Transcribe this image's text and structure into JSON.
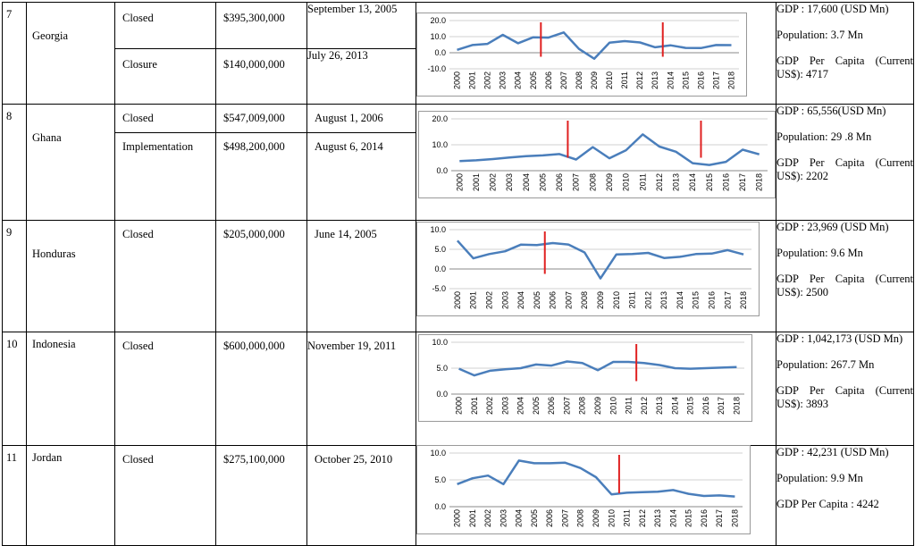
{
  "rows": [
    {
      "num": "7",
      "country": "Georgia",
      "programs": [
        {
          "status": "Closed",
          "amount": "$395,300,000",
          "date": "September 13, 2005"
        },
        {
          "status": "Closure",
          "amount": "$140,000,000",
          "date": "July 26, 2013"
        }
      ],
      "stats": [
        "GDP : 17,600 (USD Mn)",
        "Population: 3.7 Mn",
        "GDP Per Capita (Current US$): 4717"
      ]
    },
    {
      "num": "8",
      "country": "Ghana",
      "programs": [
        {
          "status": "Closed",
          "amount": "$547,009,000",
          "date": "August 1, 2006"
        },
        {
          "status": "Implementation",
          "amount": "$498,200,000",
          "date": "August 6, 2014"
        }
      ],
      "stats": [
        "GDP : 65,556(USD Mn)",
        "Population: 29 .8 Mn",
        "GDP Per Capita (Current US$): 2202"
      ]
    },
    {
      "num": "9",
      "country": "Honduras",
      "programs": [
        {
          "status": "Closed",
          "amount": "$205,000,000",
          "date": "June 14, 2005"
        }
      ],
      "stats": [
        "GDP : 23,969 (USD Mn)",
        "Population: 9.6 Mn",
        "GDP Per Capita (Current US$): 2500"
      ]
    },
    {
      "num": "10",
      "country": "Indonesia",
      "programs": [
        {
          "status": "Closed",
          "amount": "$600,000,000",
          "date": "November 19, 2011"
        }
      ],
      "stats": [
        "GDP : 1,042,173 (USD Mn)",
        "Population: 267.7 Mn",
        "GDP Per Capita (Current US$): 3893"
      ]
    },
    {
      "num": "11",
      "country": "Jordan",
      "programs": [
        {
          "status": "Closed",
          "amount": "$275,100,000",
          "date": "October 25, 2010"
        }
      ],
      "stats": [
        "GDP : 42,231 (USD Mn)",
        "Population: 9.9 Mn",
        "GDP Per Capita : 4242"
      ]
    }
  ],
  "colors": {
    "line": "#4a7ebb",
    "marker": "#e02020",
    "grid": "#d0d0d0"
  },
  "chart_data": [
    {
      "type": "line",
      "country": "Georgia",
      "x": [
        "2000",
        "2001",
        "2002",
        "2003",
        "2004",
        "2005",
        "2006",
        "2007",
        "2008",
        "2009",
        "2010",
        "2011",
        "2012",
        "2013",
        "2014",
        "2015",
        "2016",
        "2017",
        "2018"
      ],
      "values": [
        1.8,
        4.8,
        5.5,
        11.1,
        5.9,
        9.6,
        9.4,
        12.6,
        2.4,
        -3.7,
        6.2,
        7.2,
        6.4,
        3.4,
        4.6,
        3.0,
        2.9,
        4.8,
        4.7
      ],
      "yticks": [
        "20.0",
        "10.0",
        "0.0",
        "-10.0"
      ],
      "ylim": [
        -10,
        20
      ],
      "markers": [
        2005.5,
        2013.5
      ]
    },
    {
      "type": "line",
      "country": "Ghana",
      "x": [
        "2000",
        "2001",
        "2002",
        "2003",
        "2004",
        "2005",
        "2006",
        "2007",
        "2008",
        "2009",
        "2010",
        "2011",
        "2012",
        "2013",
        "2014",
        "2015",
        "2016",
        "2017",
        "2018"
      ],
      "values": [
        3.7,
        4.0,
        4.5,
        5.1,
        5.6,
        5.9,
        6.4,
        4.3,
        9.1,
        4.8,
        7.9,
        14.0,
        9.3,
        7.3,
        2.9,
        2.2,
        3.4,
        8.1,
        6.3
      ],
      "yticks": [
        "20.0",
        "10.0",
        "0.0"
      ],
      "ylim": [
        0,
        20
      ],
      "markers": [
        2006.5,
        2014.5
      ]
    },
    {
      "type": "line",
      "country": "Honduras",
      "x": [
        "2000",
        "2001",
        "2002",
        "2003",
        "2004",
        "2005",
        "2006",
        "2007",
        "2008",
        "2009",
        "2010",
        "2011",
        "2012",
        "2013",
        "2014",
        "2015",
        "2016",
        "2017",
        "2018"
      ],
      "values": [
        7.2,
        2.7,
        3.8,
        4.5,
        6.2,
        6.1,
        6.6,
        6.2,
        4.2,
        -2.4,
        3.7,
        3.8,
        4.1,
        2.8,
        3.1,
        3.8,
        3.9,
        4.8,
        3.7
      ],
      "yticks": [
        "10.0",
        "5.0",
        "0.0",
        "-5.0"
      ],
      "ylim": [
        -5,
        10
      ],
      "markers": [
        2005.5
      ]
    },
    {
      "type": "line",
      "country": "Indonesia",
      "x": [
        "2000",
        "2001",
        "2002",
        "2003",
        "2004",
        "2005",
        "2006",
        "2007",
        "2008",
        "2009",
        "2010",
        "2011",
        "2012",
        "2013",
        "2014",
        "2015",
        "2016",
        "2017",
        "2018"
      ],
      "values": [
        4.9,
        3.6,
        4.5,
        4.8,
        5.0,
        5.7,
        5.5,
        6.3,
        6.0,
        4.6,
        6.2,
        6.2,
        6.0,
        5.6,
        5.0,
        4.9,
        5.0,
        5.1,
        5.2
      ],
      "yticks": [
        "10.0",
        "5.0",
        "0.0"
      ],
      "ylim": [
        0,
        10
      ],
      "markers": [
        2011.5
      ]
    },
    {
      "type": "line",
      "country": "Jordan",
      "x": [
        "2000",
        "2001",
        "2002",
        "2003",
        "2004",
        "2005",
        "2006",
        "2007",
        "2008",
        "2009",
        "2010",
        "2011",
        "2012",
        "2013",
        "2014",
        "2015",
        "2016",
        "2017",
        "2018"
      ],
      "values": [
        4.2,
        5.3,
        5.8,
        4.2,
        8.6,
        8.1,
        8.1,
        8.2,
        7.2,
        5.5,
        2.3,
        2.6,
        2.7,
        2.8,
        3.1,
        2.4,
        2.0,
        2.1,
        1.9
      ],
      "yticks": [
        "10.0",
        "5.0",
        "0.0"
      ],
      "ylim": [
        0,
        10
      ],
      "markers": [
        2010.5
      ]
    }
  ]
}
